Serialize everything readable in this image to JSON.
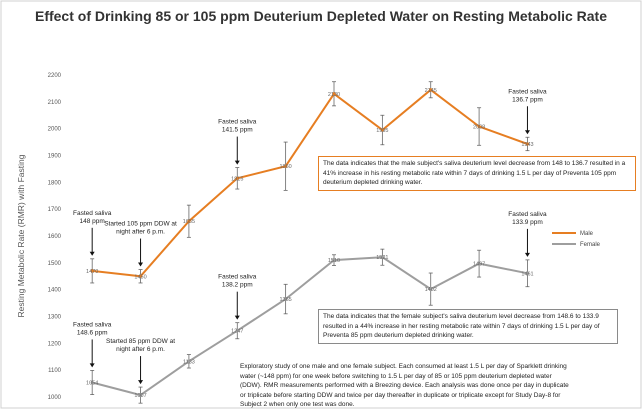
{
  "chart_data": {
    "type": "line",
    "title": "Effect of Drinking 85 or 105 ppm Deuterium Depleted Water on Resting Metabolic Rate",
    "ylabel": "Resting Metabolic Rate (RMR) with Fasting",
    "xlabel": "",
    "ylim": [
      1000,
      2200
    ],
    "yticks": [
      1000,
      1100,
      1200,
      1300,
      1400,
      1500,
      1600,
      1700,
      1800,
      1900,
      2000,
      2100,
      2200
    ],
    "x": [
      1,
      2,
      3,
      4,
      5,
      6,
      7,
      8,
      9,
      10,
      11
    ],
    "grid": false,
    "legend_position": "right",
    "series": [
      {
        "name": "Male",
        "color": "#E67E22",
        "values": [
          1470,
          1450,
          1655,
          1815,
          1860,
          2130,
          1995,
          2145,
          2008,
          1943,
          null
        ],
        "labels": [
          "1470",
          "1450",
          "1655",
          "1815",
          "1860",
          "2130",
          "1995",
          "2145",
          "2008",
          "1943",
          ""
        ],
        "err": [
          45,
          25,
          60,
          40,
          90,
          45,
          55,
          30,
          70,
          25,
          0
        ]
      },
      {
        "name": "Female",
        "color": "#9E9E9E",
        "values": [
          1054,
          1007,
          1133,
          1247,
          1365,
          1510,
          1521,
          1402,
          1497,
          1461,
          null
        ],
        "labels": [
          "1054",
          "1007",
          "1133",
          "1247",
          "1365",
          "1510",
          "1521",
          "1402",
          "1497",
          "1461",
          ""
        ],
        "err": [
          45,
          30,
          25,
          30,
          55,
          20,
          30,
          60,
          50,
          50,
          0
        ]
      }
    ],
    "annotations_male": [
      {
        "x": 1,
        "text": [
          "Fasted saliva",
          "148 ppm"
        ]
      },
      {
        "x": 2,
        "text": [
          "Started 105 ppm DDW at",
          "night after 6 p.m."
        ]
      },
      {
        "x": 4,
        "text": [
          "Fasted saliva",
          "141.5 ppm"
        ]
      },
      {
        "x": 10,
        "text": [
          "Fasted saliva",
          "136.7 ppm"
        ]
      }
    ],
    "annotations_female": [
      {
        "x": 1,
        "text": [
          "Fasted saliva",
          "148.6 ppm"
        ]
      },
      {
        "x": 2,
        "text": [
          "Started 85 ppm DDW at",
          "night after 6 p.m."
        ]
      },
      {
        "x": 4,
        "text": [
          "Fasted saliva",
          "138.2 ppm"
        ]
      },
      {
        "x": 10,
        "text": [
          "Fasted saliva",
          "133.9 ppm"
        ]
      }
    ]
  },
  "boxes": {
    "male": "The data indicates that the male subject's saliva deuterium level decrease from 148 to 136.7 resulted in a 41% increase in his resting metabolic rate within 7 days of drinking 1.5 L per day of Preventa 105 ppm deuterium depleted drinking water.",
    "female": "The data indicates that the female subject's saliva deuterium level decrease from 148.6 to 133.9 resulted in a 44% increase in her resting metabolic rate within 7 days of drinking 1.5 L per day of Preventa 85 ppm deuterium depleted drinking water."
  },
  "note": "Exploratory study of one male and one female subject. Each consumed at least 1.5 L per day of Sparklett drinking water (~148 ppm) for one week before switching to 1.5 L per day of 85 or 105 ppm deuterium depleted water (DDW). RMR measurements performed with a Breezing device. Each analysis was done once per day in duplicate or triplicate before starting DDW and twice per day thereafter in duplicate or triplicate except for Study Day-8 for Subject 2 when only one test was done."
}
